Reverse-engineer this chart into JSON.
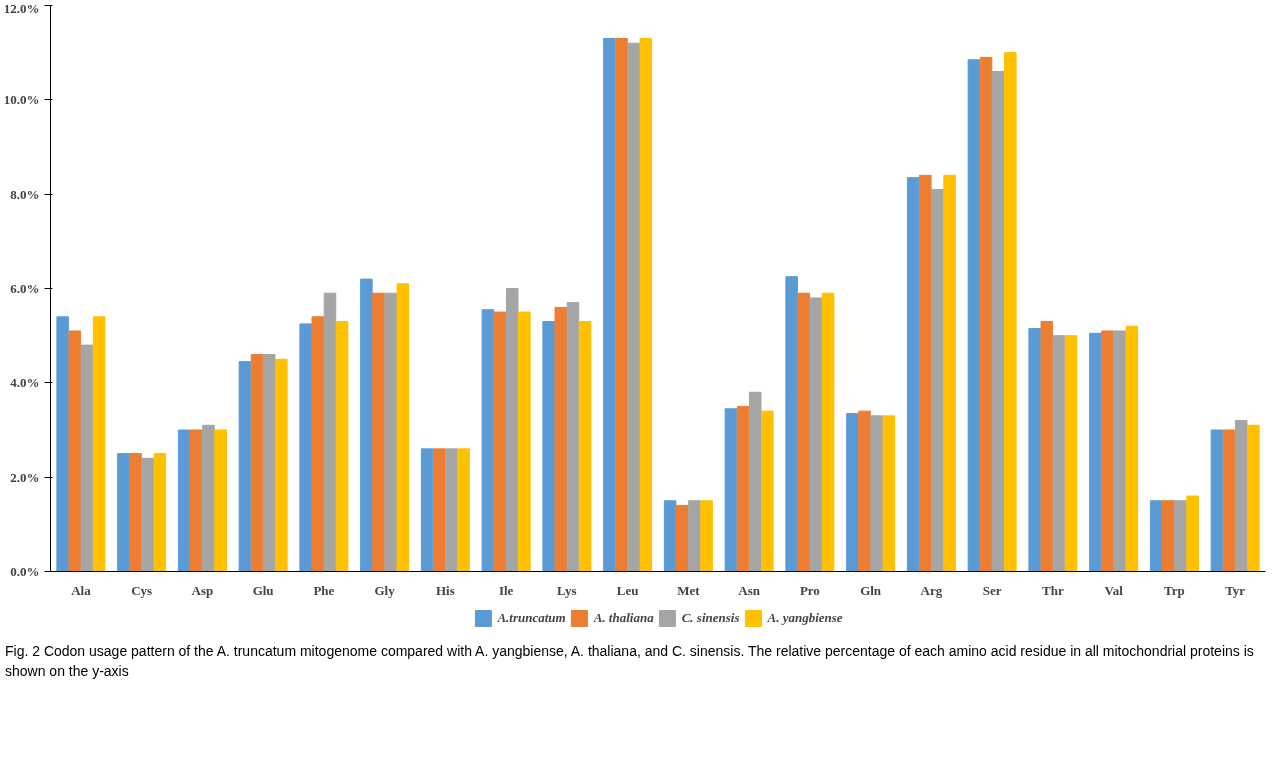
{
  "chart_data": {
    "type": "bar",
    "categories": [
      "Ala",
      "Cys",
      "Asp",
      "Glu",
      "Phe",
      "Gly",
      "His",
      "Ile",
      "Lys",
      "Leu",
      "Met",
      "Asn",
      "Pro",
      "Gln",
      "Arg",
      "Ser",
      "Thr",
      "Val",
      "Trp",
      "Tyr"
    ],
    "series": [
      {
        "name": "A.truncatum",
        "color": "#5b9bd5",
        "values": [
          5.4,
          2.5,
          3.0,
          4.45,
          5.25,
          6.2,
          2.6,
          5.55,
          5.3,
          11.3,
          1.5,
          3.45,
          6.25,
          3.35,
          8.35,
          10.85,
          5.15,
          5.05,
          1.5,
          3.0
        ]
      },
      {
        "name": "A. thaliana",
        "color": "#ed7d31",
        "values": [
          5.1,
          2.5,
          3.0,
          4.6,
          5.4,
          5.9,
          2.6,
          5.5,
          5.6,
          11.3,
          1.4,
          3.5,
          5.9,
          3.4,
          8.4,
          10.9,
          5.3,
          5.1,
          1.5,
          3.0
        ]
      },
      {
        "name": "C. sinensis",
        "color": "#a5a5a5",
        "values": [
          4.8,
          2.4,
          3.1,
          4.6,
          5.9,
          5.9,
          2.6,
          6.0,
          5.7,
          11.2,
          1.5,
          3.8,
          5.8,
          3.3,
          8.1,
          10.6,
          5.0,
          5.1,
          1.5,
          3.2
        ]
      },
      {
        "name": "A. yangbiense",
        "color": "#ffc000",
        "values": [
          5.4,
          2.5,
          3.0,
          4.5,
          5.3,
          6.1,
          2.6,
          5.5,
          5.3,
          11.3,
          1.5,
          3.4,
          5.9,
          3.3,
          8.4,
          11.0,
          5.0,
          5.2,
          1.6,
          3.1
        ]
      }
    ],
    "ylim": [
      0,
      12
    ],
    "yticks": [
      {
        "value": 0,
        "label": "0.0%"
      },
      {
        "value": 2,
        "label": "2.0%"
      },
      {
        "value": 4,
        "label": "4.0%"
      },
      {
        "value": 6,
        "label": "6.0%"
      },
      {
        "value": 8,
        "label": "8.0%"
      },
      {
        "value": 10,
        "label": "10.0%"
      },
      {
        "value": 12,
        "label": "12.0%"
      }
    ],
    "grid": false,
    "legend": "bottom",
    "annotations": [
      "Fig. 2  Codon usage pattern of the A. truncatum mitogenome compared with A. yangbiense, A. thaliana, and C. sinensis. The relative percentage of each amino acid residue in all mitochondrial proteins is shown on the y-axis"
    ]
  }
}
